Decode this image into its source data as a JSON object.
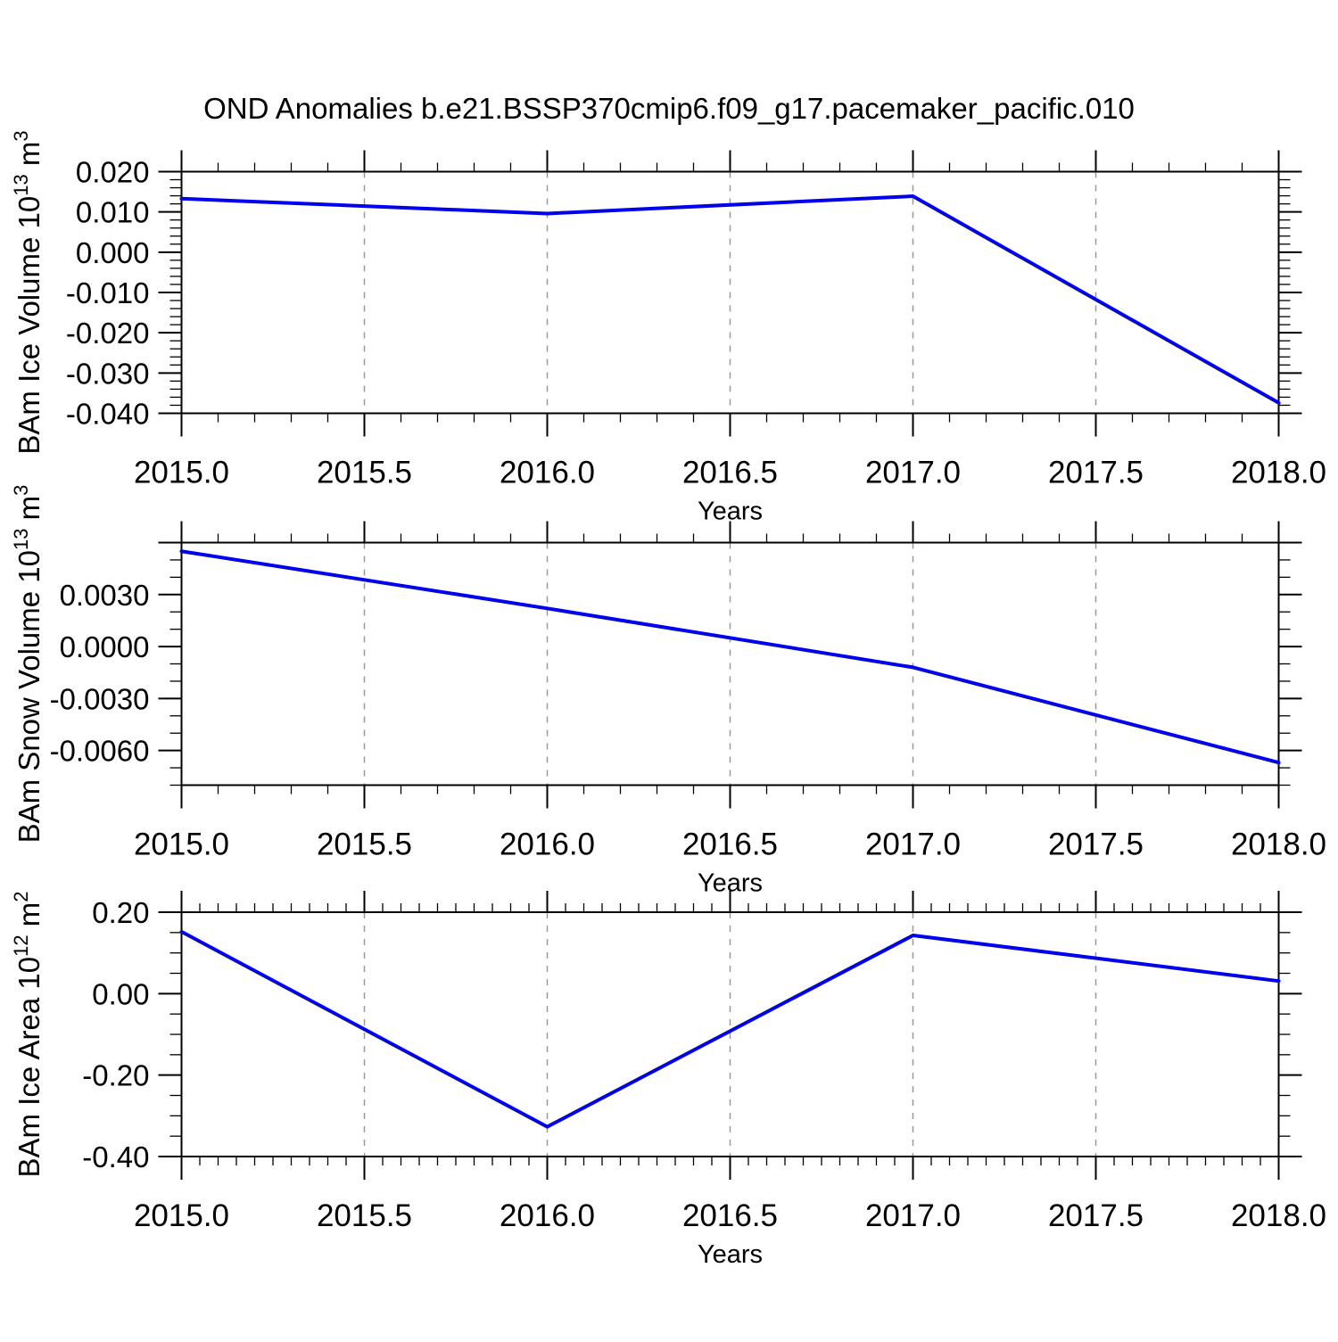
{
  "title": "OND Anomalies b.e21.BSSP370cmip6.f09_g17.pacemaker_pacific.010",
  "colors": {
    "line": "#0000ee",
    "axis": "#000000",
    "grid": "#999999",
    "background": "#ffffff"
  },
  "chart_data": [
    {
      "type": "line",
      "name": "ice-volume",
      "x": [
        2015.0,
        2016.0,
        2017.0,
        2018.0
      ],
      "values": [
        0.0133,
        0.0096,
        0.0139,
        -0.0374
      ],
      "xlabel": "Years",
      "ylabel_parts": [
        {
          "t": "BAm Ice Volume 10"
        },
        {
          "t": "13",
          "sup": true
        },
        {
          "t": " m"
        },
        {
          "t": "3",
          "sup": true
        }
      ],
      "xlim": [
        2015.0,
        2018.0
      ],
      "ylim": [
        -0.04,
        0.02
      ],
      "xticks": {
        "values": [
          2015.0,
          2015.5,
          2016.0,
          2016.5,
          2017.0,
          2017.5,
          2018.0
        ],
        "labels": [
          "2015.0",
          "2015.5",
          "2016.0",
          "2016.5",
          "2017.0",
          "2017.5",
          "2018.0"
        ],
        "minor_step": 0.1
      },
      "yticks": {
        "values": [
          0.02,
          0.01,
          0.0,
          -0.01,
          -0.02,
          -0.03,
          -0.04
        ],
        "labels": [
          "0.020",
          "0.010",
          "0.000",
          "-0.010",
          "-0.020",
          "-0.030",
          "-0.040"
        ],
        "minor_step": 0.002
      },
      "grid_x": [
        2015.5,
        2016.0,
        2016.5,
        2017.0,
        2017.5
      ],
      "grid_on": true,
      "legend": "none"
    },
    {
      "type": "line",
      "name": "snow-volume",
      "x": [
        2015.0,
        2016.0,
        2017.0,
        2018.0
      ],
      "values": [
        0.0055,
        0.0022,
        -0.0012,
        -0.0067
      ],
      "xlabel": "Years",
      "ylabel_parts": [
        {
          "t": "BAm Snow Volume 10"
        },
        {
          "t": "13",
          "sup": true
        },
        {
          "t": " m"
        },
        {
          "t": "3",
          "sup": true
        }
      ],
      "xlim": [
        2015.0,
        2018.0
      ],
      "ylim": [
        -0.008,
        0.006
      ],
      "xticks": {
        "values": [
          2015.0,
          2015.5,
          2016.0,
          2016.5,
          2017.0,
          2017.5,
          2018.0
        ],
        "labels": [
          "2015.0",
          "2015.5",
          "2016.0",
          "2016.5",
          "2017.0",
          "2017.5",
          "2018.0"
        ],
        "minor_step": 0.1
      },
      "yticks": {
        "values": [
          0.006,
          0.003,
          0.0,
          -0.003,
          -0.006
        ],
        "labels": [
          "",
          "0.0030",
          "0.0000",
          "-0.0030",
          "-0.0060"
        ],
        "minor_step": 0.001
      },
      "grid_x": [
        2015.5,
        2016.0,
        2016.5,
        2017.0,
        2017.5
      ],
      "grid_on": true,
      "legend": "none"
    },
    {
      "type": "line",
      "name": "ice-area",
      "x": [
        2015.0,
        2016.0,
        2017.0,
        2018.0
      ],
      "values": [
        0.152,
        -0.327,
        0.143,
        0.031
      ],
      "xlabel": "Years",
      "ylabel_parts": [
        {
          "t": "BAm Ice Area 10"
        },
        {
          "t": "12",
          "sup": true
        },
        {
          "t": " m"
        },
        {
          "t": "2",
          "sup": true
        }
      ],
      "xlim": [
        2015.0,
        2018.0
      ],
      "ylim": [
        -0.4,
        0.2
      ],
      "xticks": {
        "values": [
          2015.0,
          2015.5,
          2016.0,
          2016.5,
          2017.0,
          2017.5,
          2018.0
        ],
        "labels": [
          "2015.0",
          "2015.5",
          "2016.0",
          "2016.5",
          "2017.0",
          "2017.5",
          "2018.0"
        ],
        "minor_step": 0.05
      },
      "yticks": {
        "values": [
          0.2,
          0.0,
          -0.2,
          -0.4
        ],
        "labels": [
          "0.20",
          "0.00",
          "-0.20",
          "-0.40"
        ],
        "minor_step": 0.05
      },
      "grid_x": [
        2015.5,
        2016.0,
        2016.5,
        2017.0,
        2017.5
      ],
      "grid_on": true,
      "legend": "none"
    }
  ]
}
